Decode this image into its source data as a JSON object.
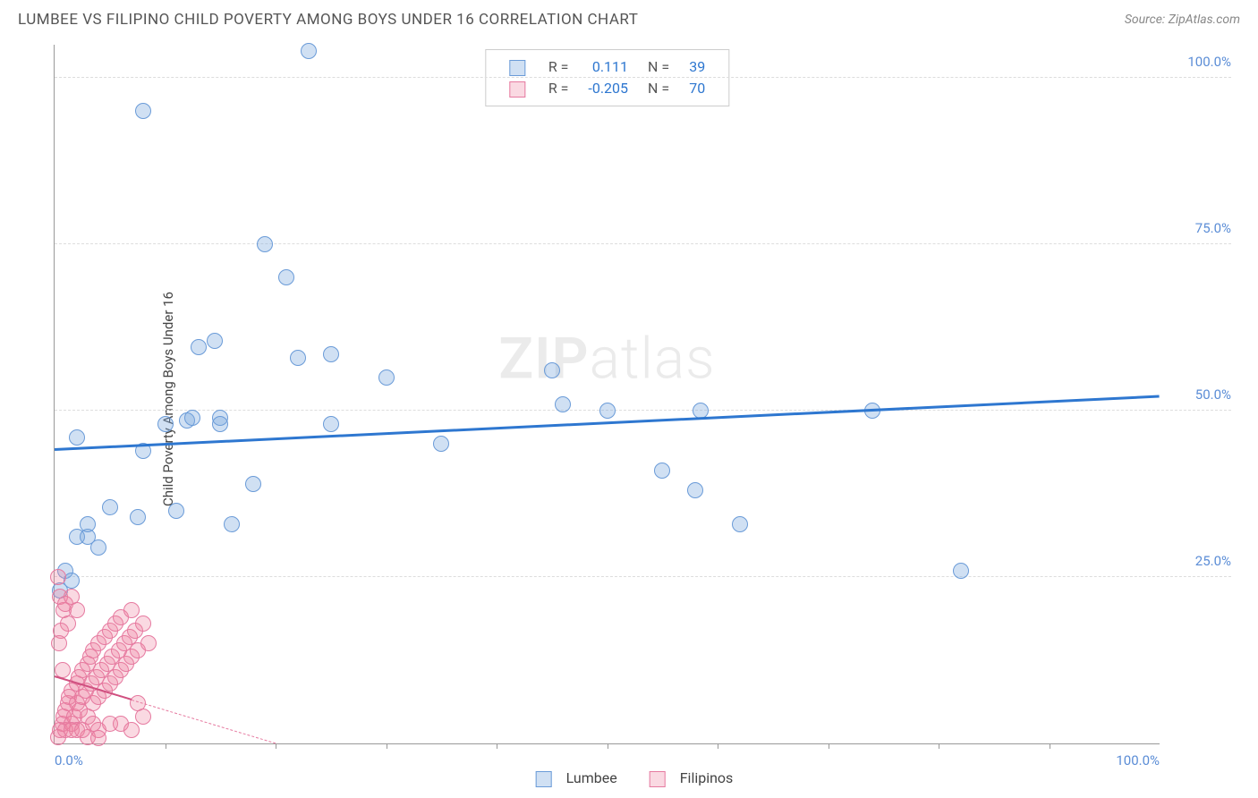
{
  "header": {
    "title": "LUMBEE VS FILIPINO CHILD POVERTY AMONG BOYS UNDER 16 CORRELATION CHART",
    "source": "Source: ZipAtlas.com"
  },
  "chart": {
    "type": "scatter",
    "ylabel": "Child Poverty Among Boys Under 16",
    "watermark_zip": "ZIP",
    "watermark_atlas": "atlas",
    "xlim": [
      0,
      100
    ],
    "ylim": [
      0,
      105
    ],
    "yticks": [
      {
        "v": 25,
        "label": "25.0%"
      },
      {
        "v": 50,
        "label": "50.0%"
      },
      {
        "v": 75,
        "label": "75.0%"
      },
      {
        "v": 100,
        "label": "100.0%"
      }
    ],
    "xticks_minor": [
      10,
      20,
      30,
      40,
      50,
      60,
      70,
      80,
      90
    ],
    "xtick_labels": [
      {
        "v": 0,
        "label": "0.0%"
      },
      {
        "v": 100,
        "label": "100.0%"
      }
    ],
    "series": [
      {
        "name": "Lumbee",
        "color_fill": "rgba(120,165,220,0.35)",
        "color_stroke": "#6a9bd8",
        "marker_r": 9,
        "trend": {
          "x1": 0,
          "y1": 44,
          "x2": 100,
          "y2": 52,
          "color": "#2e77d0",
          "width": 2.5,
          "style": "solid"
        },
        "R_label": "R =",
        "R": "0.111",
        "N_label": "N =",
        "N": "39",
        "points": [
          [
            0.5,
            23
          ],
          [
            1,
            26
          ],
          [
            1.5,
            24.5
          ],
          [
            2,
            31
          ],
          [
            3,
            31
          ],
          [
            4,
            29.5
          ],
          [
            5,
            35.5
          ],
          [
            2,
            46
          ],
          [
            3,
            33
          ],
          [
            7.5,
            34
          ],
          [
            11,
            35
          ],
          [
            8,
            44
          ],
          [
            10,
            48
          ],
          [
            12,
            48.5
          ],
          [
            12.5,
            49
          ],
          [
            15,
            49
          ],
          [
            13,
            59.5
          ],
          [
            14.5,
            60.5
          ],
          [
            15,
            48
          ],
          [
            16,
            33
          ],
          [
            18,
            39
          ],
          [
            19,
            75
          ],
          [
            22,
            58
          ],
          [
            23,
            104
          ],
          [
            21,
            70
          ],
          [
            25,
            58.5
          ],
          [
            25,
            48
          ],
          [
            30,
            55
          ],
          [
            35,
            45
          ],
          [
            45,
            56
          ],
          [
            46,
            51
          ],
          [
            50,
            50
          ],
          [
            55,
            41
          ],
          [
            58,
            38
          ],
          [
            58.5,
            50
          ],
          [
            62,
            33
          ],
          [
            74,
            50
          ],
          [
            8,
            95
          ],
          [
            82,
            26
          ]
        ]
      },
      {
        "name": "Filipinos",
        "color_fill": "rgba(240,130,160,0.30)",
        "color_stroke": "#e67aa0",
        "marker_r": 9,
        "trend": {
          "x1": 0,
          "y1": 10,
          "x2": 20,
          "y2": 0,
          "color": "#e67aa0",
          "width": 1.5,
          "style": "dashed"
        },
        "trend_solid": {
          "x1": 0,
          "y1": 10,
          "x2": 7,
          "y2": 6.5,
          "color": "#d05080",
          "width": 2
        },
        "R_label": "R =",
        "R": "-0.205",
        "N_label": "N =",
        "N": "70",
        "points": [
          [
            0.3,
            1
          ],
          [
            0.5,
            2
          ],
          [
            0.7,
            3
          ],
          [
            0.8,
            4
          ],
          [
            1,
            2
          ],
          [
            1,
            5
          ],
          [
            1.2,
            6
          ],
          [
            1.3,
            7
          ],
          [
            1.5,
            3
          ],
          [
            1.5,
            8
          ],
          [
            1.8,
            4
          ],
          [
            2,
            9
          ],
          [
            2,
            6
          ],
          [
            2.2,
            10
          ],
          [
            2.3,
            5
          ],
          [
            2.5,
            11
          ],
          [
            2.5,
            7
          ],
          [
            2.8,
            8
          ],
          [
            3,
            12
          ],
          [
            3,
            4
          ],
          [
            3.2,
            13
          ],
          [
            3.3,
            9
          ],
          [
            3.5,
            6
          ],
          [
            3.5,
            14
          ],
          [
            3.8,
            10
          ],
          [
            4,
            15
          ],
          [
            4,
            7
          ],
          [
            4.2,
            11
          ],
          [
            4.5,
            8
          ],
          [
            4.5,
            16
          ],
          [
            4.8,
            12
          ],
          [
            5,
            17
          ],
          [
            5,
            9
          ],
          [
            5.2,
            13
          ],
          [
            5.5,
            10
          ],
          [
            5.5,
            18
          ],
          [
            5.8,
            14
          ],
          [
            6,
            11
          ],
          [
            6,
            19
          ],
          [
            6.3,
            15
          ],
          [
            6.5,
            12
          ],
          [
            6.8,
            16
          ],
          [
            7,
            20
          ],
          [
            7,
            13
          ],
          [
            7.3,
            17
          ],
          [
            7.5,
            14
          ],
          [
            8,
            18
          ],
          [
            8,
            4
          ],
          [
            8.5,
            15
          ],
          [
            2,
            2
          ],
          [
            3,
            1
          ],
          [
            4,
            2
          ],
          [
            5,
            3
          ],
          [
            4,
            0.8
          ],
          [
            0.3,
            25
          ],
          [
            0.5,
            22
          ],
          [
            0.8,
            20
          ],
          [
            1,
            21
          ],
          [
            1.5,
            22
          ],
          [
            2,
            20
          ],
          [
            1.2,
            18
          ],
          [
            0.6,
            17
          ],
          [
            0.4,
            15
          ],
          [
            0.7,
            11
          ],
          [
            1.5,
            2
          ],
          [
            2.5,
            2
          ],
          [
            3.5,
            3
          ],
          [
            6,
            3
          ],
          [
            7,
            2
          ],
          [
            7.5,
            6
          ]
        ]
      }
    ],
    "legend_bottom": [
      {
        "label": "Lumbee",
        "fill": "rgba(120,165,220,0.35)",
        "stroke": "#6a9bd8"
      },
      {
        "label": "Filipinos",
        "fill": "rgba(240,130,160,0.30)",
        "stroke": "#e67aa0"
      }
    ]
  }
}
